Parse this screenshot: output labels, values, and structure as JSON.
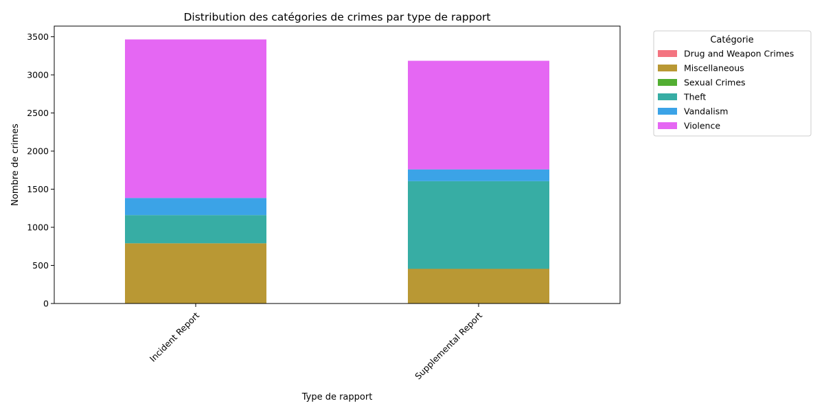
{
  "chart_data": {
    "type": "bar",
    "stacked": true,
    "title": "Distribution des catégories de crimes par type de rapport",
    "xlabel": "Type de rapport",
    "ylabel": "Nombre de crimes",
    "categories": [
      "Incident Report",
      "Supplemental Report"
    ],
    "ylim": [
      0,
      3640
    ],
    "yticks": [
      0,
      500,
      1000,
      1500,
      2000,
      2500,
      3000,
      3500
    ],
    "legend_title": "Catégorie",
    "legend_position": "outside-top-right",
    "grid": false,
    "series": [
      {
        "name": "Drug and Weapon Crimes",
        "color": "#f37480",
        "values": [
          0,
          0
        ]
      },
      {
        "name": "Miscellaneous",
        "color": "#b99834",
        "values": [
          790,
          455
        ]
      },
      {
        "name": "Sexual Crimes",
        "color": "#52ae32",
        "values": [
          0,
          0
        ]
      },
      {
        "name": "Theft",
        "color": "#37ada4",
        "values": [
          370,
          1150
        ]
      },
      {
        "name": "Vandalism",
        "color": "#3ba3e7",
        "values": [
          225,
          155
        ]
      },
      {
        "name": "Violence",
        "color": "#e567f3",
        "values": [
          2080,
          1425
        ]
      }
    ]
  }
}
